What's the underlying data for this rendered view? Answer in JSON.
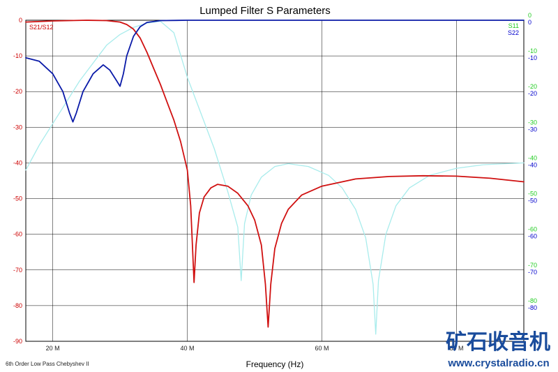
{
  "chart_data": {
    "type": "line",
    "title": "Lumped Filter S Parameters",
    "xlabel": "Frequency (Hz)",
    "x_unit_suffix": " M",
    "xlim": [
      16,
      90
    ],
    "ylim": [
      -90,
      0
    ],
    "x_ticks": [
      20,
      40,
      60,
      80
    ],
    "y_ticks_left": [
      0,
      -10,
      -20,
      -30,
      -40,
      -50,
      -60,
      -70,
      -80,
      -90
    ],
    "y_ticks_right": [
      0,
      -10,
      -20,
      -30,
      -40,
      -50,
      -60,
      -70,
      -80
    ],
    "legend_left": "S21/S12",
    "legend_right": [
      "S11",
      "S22"
    ],
    "footnote": "6th Order Low Pass Chebyshev II",
    "watermark": [
      "矿石收音机",
      "www.crystalradio.cn"
    ],
    "colors": {
      "s21": "#d01010",
      "s11": "#a8ecec",
      "s22": "#0a1aa8",
      "grid": "#000000",
      "right_green": "#22cc22",
      "right_blue": "#0000cc"
    },
    "series": [
      {
        "name": "S21/S12",
        "color": "#d01010",
        "points": [
          [
            16,
            -0.5
          ],
          [
            20,
            -0.2
          ],
          [
            25,
            0
          ],
          [
            28,
            -0.1
          ],
          [
            30,
            -0.5
          ],
          [
            31,
            -1.2
          ],
          [
            32,
            -2.5
          ],
          [
            33,
            -5
          ],
          [
            34,
            -9
          ],
          [
            35,
            -13.5
          ],
          [
            36,
            -18
          ],
          [
            37,
            -23
          ],
          [
            38,
            -28
          ],
          [
            39,
            -34
          ],
          [
            40,
            -42
          ],
          [
            40.5,
            -52
          ],
          [
            40.8,
            -65
          ],
          [
            41,
            -73.5
          ],
          [
            41.3,
            -63
          ],
          [
            41.8,
            -54
          ],
          [
            42.5,
            -49.5
          ],
          [
            43.5,
            -47
          ],
          [
            44.5,
            -46
          ],
          [
            46,
            -46.5
          ],
          [
            47.5,
            -48.5
          ],
          [
            49,
            -52
          ],
          [
            50,
            -56
          ],
          [
            51,
            -63
          ],
          [
            51.6,
            -74
          ],
          [
            52,
            -86
          ],
          [
            52.4,
            -74
          ],
          [
            53,
            -64
          ],
          [
            54,
            -57
          ],
          [
            55,
            -53
          ],
          [
            57,
            -49
          ],
          [
            60,
            -46.5
          ],
          [
            65,
            -44.5
          ],
          [
            70,
            -43.8
          ],
          [
            75,
            -43.6
          ],
          [
            80,
            -43.7
          ],
          [
            85,
            -44.3
          ],
          [
            90,
            -45.3
          ]
        ]
      },
      {
        "name": "S11",
        "color": "#a8ecec",
        "points": [
          [
            16,
            -42
          ],
          [
            18,
            -35
          ],
          [
            20,
            -29
          ],
          [
            22,
            -23
          ],
          [
            24,
            -17
          ],
          [
            26,
            -12
          ],
          [
            28,
            -7
          ],
          [
            30,
            -4
          ],
          [
            32,
            -2
          ],
          [
            34,
            -0.8
          ],
          [
            36,
            -0.3
          ],
          [
            38,
            -3.5
          ],
          [
            40,
            -16
          ],
          [
            42,
            -26
          ],
          [
            44,
            -36
          ],
          [
            46,
            -48
          ],
          [
            47.5,
            -58
          ],
          [
            48,
            -73
          ],
          [
            48.5,
            -57
          ],
          [
            49.5,
            -49
          ],
          [
            51,
            -44
          ],
          [
            53,
            -41
          ],
          [
            55,
            -40.2
          ],
          [
            58,
            -41
          ],
          [
            61,
            -43.5
          ],
          [
            63,
            -47
          ],
          [
            65,
            -53
          ],
          [
            66.5,
            -61
          ],
          [
            67.6,
            -74
          ],
          [
            68,
            -88
          ],
          [
            68.4,
            -73
          ],
          [
            69.5,
            -60
          ],
          [
            71,
            -52
          ],
          [
            73,
            -47
          ],
          [
            76,
            -43.5
          ],
          [
            80,
            -41.5
          ],
          [
            84,
            -40.5
          ],
          [
            90,
            -40
          ]
        ]
      },
      {
        "name": "S22",
        "color": "#0a1aa8",
        "points": [
          [
            16,
            -10.5
          ],
          [
            18,
            -11.5
          ],
          [
            20,
            -15
          ],
          [
            21.5,
            -20
          ],
          [
            22.5,
            -26
          ],
          [
            23,
            -28.5
          ],
          [
            23.5,
            -26
          ],
          [
            24.5,
            -20
          ],
          [
            26,
            -15
          ],
          [
            27.5,
            -12.5
          ],
          [
            28.5,
            -14
          ],
          [
            29.5,
            -17
          ],
          [
            30,
            -18.5
          ],
          [
            30.5,
            -15
          ],
          [
            31,
            -10
          ],
          [
            32,
            -4.5
          ],
          [
            33,
            -1.8
          ],
          [
            34,
            -0.6
          ],
          [
            36,
            -0.1
          ],
          [
            40,
            0
          ],
          [
            50,
            0
          ],
          [
            60,
            0
          ],
          [
            70,
            0
          ],
          [
            80,
            0
          ],
          [
            90,
            0
          ]
        ]
      }
    ]
  }
}
